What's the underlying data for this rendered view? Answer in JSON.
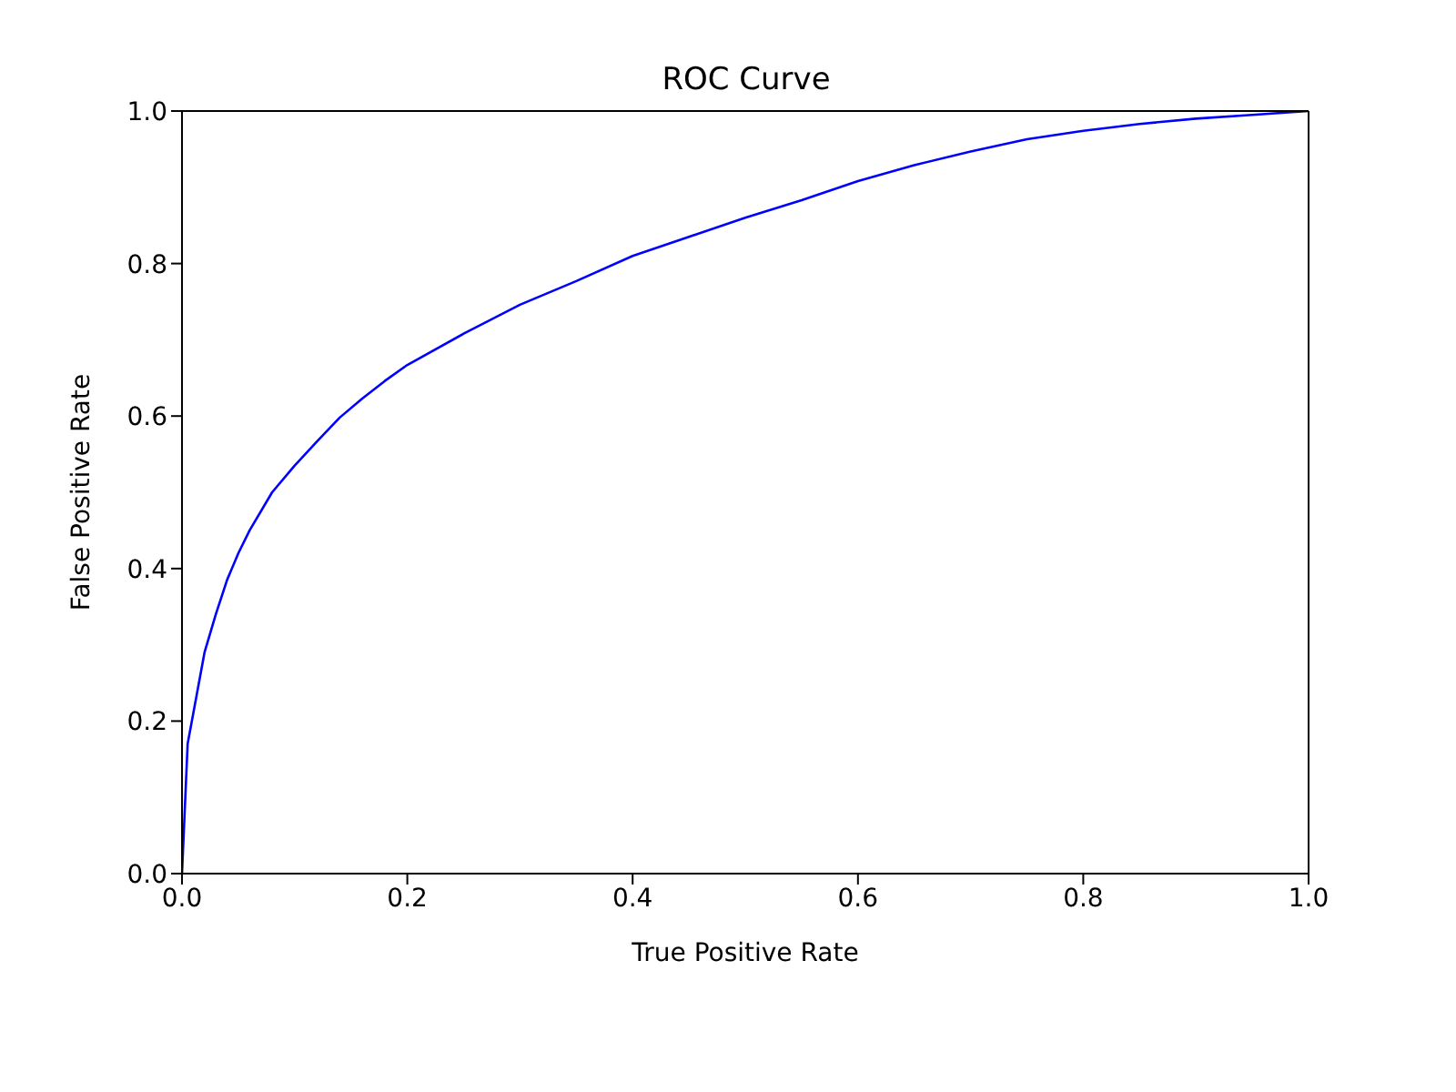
{
  "chart_data": {
    "type": "line",
    "title": "ROC Curve",
    "xlabel": "True Positive Rate",
    "ylabel": "False Positive Rate",
    "x": [
      0,
      0.005,
      0.01,
      0.02,
      0.03,
      0.04,
      0.05,
      0.06,
      0.08,
      0.1,
      0.12,
      0.14,
      0.16,
      0.18,
      0.2,
      0.25,
      0.3,
      0.35,
      0.4,
      0.45,
      0.5,
      0.55,
      0.6,
      0.65,
      0.7,
      0.75,
      0.8,
      0.85,
      0.9,
      0.95,
      1
    ],
    "series": [
      {
        "color": "#0000ff",
        "values": [
          0,
          0.17,
          0.21,
          0.29,
          0.34,
          0.385,
          0.42,
          0.45,
          0.5,
          0.535,
          0.567,
          0.598,
          0.623,
          0.646,
          0.667,
          0.708,
          0.746,
          0.777,
          0.81,
          0.835,
          0.86,
          0.883,
          0.908,
          0.929,
          0.947,
          0.963,
          0.974,
          0.983,
          0.99,
          0.995,
          1
        ]
      }
    ],
    "xlim": [
      0,
      1
    ],
    "ylim": [
      0,
      1
    ],
    "xticks": [
      {
        "value": 0,
        "label": "0.0"
      },
      {
        "value": 0.2,
        "label": "0.2"
      },
      {
        "value": 0.4,
        "label": "0.4"
      },
      {
        "value": 0.6,
        "label": "0.6"
      },
      {
        "value": 0.8,
        "label": "0.8"
      },
      {
        "value": 1,
        "label": "1.0"
      }
    ],
    "yticks": [
      {
        "value": 0,
        "label": "0.0"
      },
      {
        "value": 0.2,
        "label": "0.2"
      },
      {
        "value": 0.4,
        "label": "0.4"
      },
      {
        "value": 0.6,
        "label": "0.6"
      },
      {
        "value": 0.8,
        "label": "0.8"
      },
      {
        "value": 1,
        "label": "1.0"
      }
    ],
    "grid": false,
    "legend": false,
    "marker": "none",
    "line_style": "solid"
  }
}
